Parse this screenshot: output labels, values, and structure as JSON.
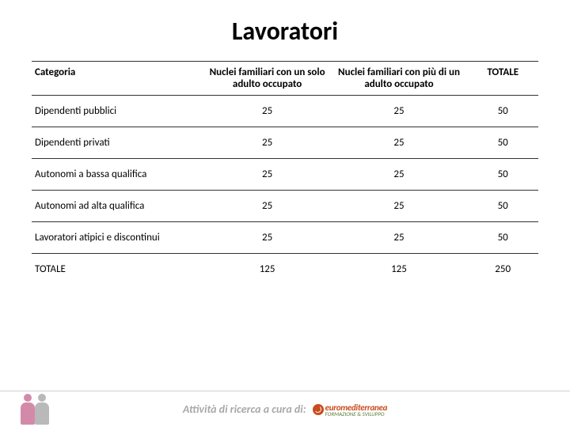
{
  "title": "Lavoratori",
  "table": {
    "columns": [
      {
        "label": "Categoria",
        "align": "left",
        "class": "col-cat"
      },
      {
        "label": "Nuclei familiari con un solo adulto occupato",
        "align": "center",
        "class": "col-a"
      },
      {
        "label": "Nuclei familiari con più di un adulto occupato",
        "align": "center",
        "class": "col-b"
      },
      {
        "label": "TOTALE",
        "align": "center",
        "class": "col-c"
      }
    ],
    "rows": [
      {
        "cat": "Dipendenti pubblici",
        "a": "25",
        "b": "25",
        "c": "50"
      },
      {
        "cat": "Dipendenti privati",
        "a": "25",
        "b": "25",
        "c": "50"
      },
      {
        "cat": "Autonomi a bassa qualifica",
        "a": "25",
        "b": "25",
        "c": "50"
      },
      {
        "cat": "Autonomi ad alta qualifica",
        "a": "25",
        "b": "25",
        "c": "50"
      },
      {
        "cat": "Lavoratori atipici e discontinui",
        "a": "25",
        "b": "25",
        "c": "50"
      },
      {
        "cat": "TOTALE",
        "a": "125",
        "b": "125",
        "c": "250"
      }
    ],
    "border_color": "#333333",
    "font_size": 13
  },
  "footer": {
    "text": "Attività di ricerca a cura di:",
    "logo_main": "euromediterranea",
    "logo_sub": "FORMAZIONE & SVILUPPO",
    "text_color": "#a9a9a9",
    "logo_color": "#c94c1c",
    "logo_sub_color": "#5a7a3a",
    "icon_colors": [
      "#d38aa8",
      "#b9b9b9"
    ]
  }
}
